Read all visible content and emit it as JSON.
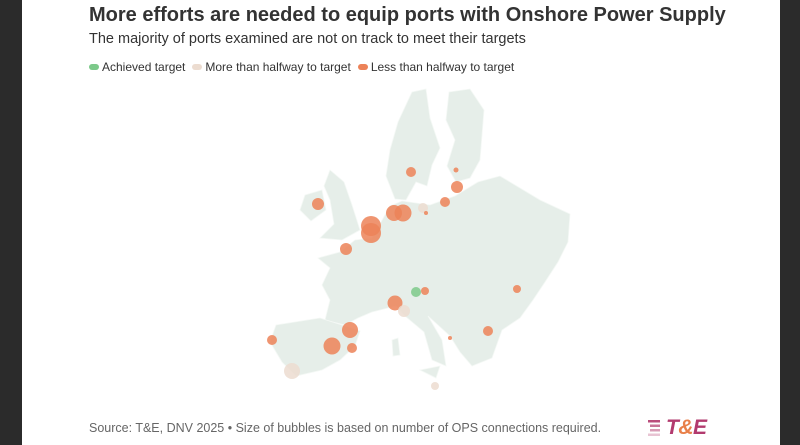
{
  "header": {
    "title": "More efforts are needed to equip ports with Onshore Power Supply",
    "subtitle": "The majority of ports examined are not on track to meet their targets"
  },
  "legend": [
    {
      "label": "Achieved target",
      "color": "#7cc98a"
    },
    {
      "label": "More than halfway to target",
      "color": "#ecdcd0"
    },
    {
      "label": "Less than halfway to target",
      "color": "#ec8258"
    }
  ],
  "map": {
    "land_color": "#e6eee9",
    "ports": [
      {
        "status": "less",
        "size": 6
      },
      {
        "status": "less",
        "size": 5
      },
      {
        "status": "less",
        "size": 2.5
      },
      {
        "status": "less",
        "size": 6
      },
      {
        "status": "less",
        "size": 5
      },
      {
        "status": "less",
        "size": 8
      },
      {
        "status": "less",
        "size": 8.5
      },
      {
        "status": "more",
        "size": 5
      },
      {
        "status": "less",
        "size": 2
      },
      {
        "status": "less",
        "size": 10
      },
      {
        "status": "less",
        "size": 10
      },
      {
        "status": "less",
        "size": 6
      },
      {
        "status": "achieved",
        "size": 5
      },
      {
        "status": "less",
        "size": 4
      },
      {
        "status": "less",
        "size": 4
      },
      {
        "status": "less",
        "size": 7.5
      },
      {
        "status": "more",
        "size": 6
      },
      {
        "status": "less",
        "size": 8
      },
      {
        "status": "less",
        "size": 5
      },
      {
        "status": "less",
        "size": 8.5
      },
      {
        "status": "less",
        "size": 5
      },
      {
        "status": "less",
        "size": 5
      },
      {
        "status": "less",
        "size": 2
      },
      {
        "status": "more",
        "size": 8
      },
      {
        "status": "more",
        "size": 4
      }
    ]
  },
  "footer": {
    "source": "Source: T&E, DNV 2025 • Size of bubbles is based on number of OPS connections required.",
    "logo_text": "T&E"
  }
}
